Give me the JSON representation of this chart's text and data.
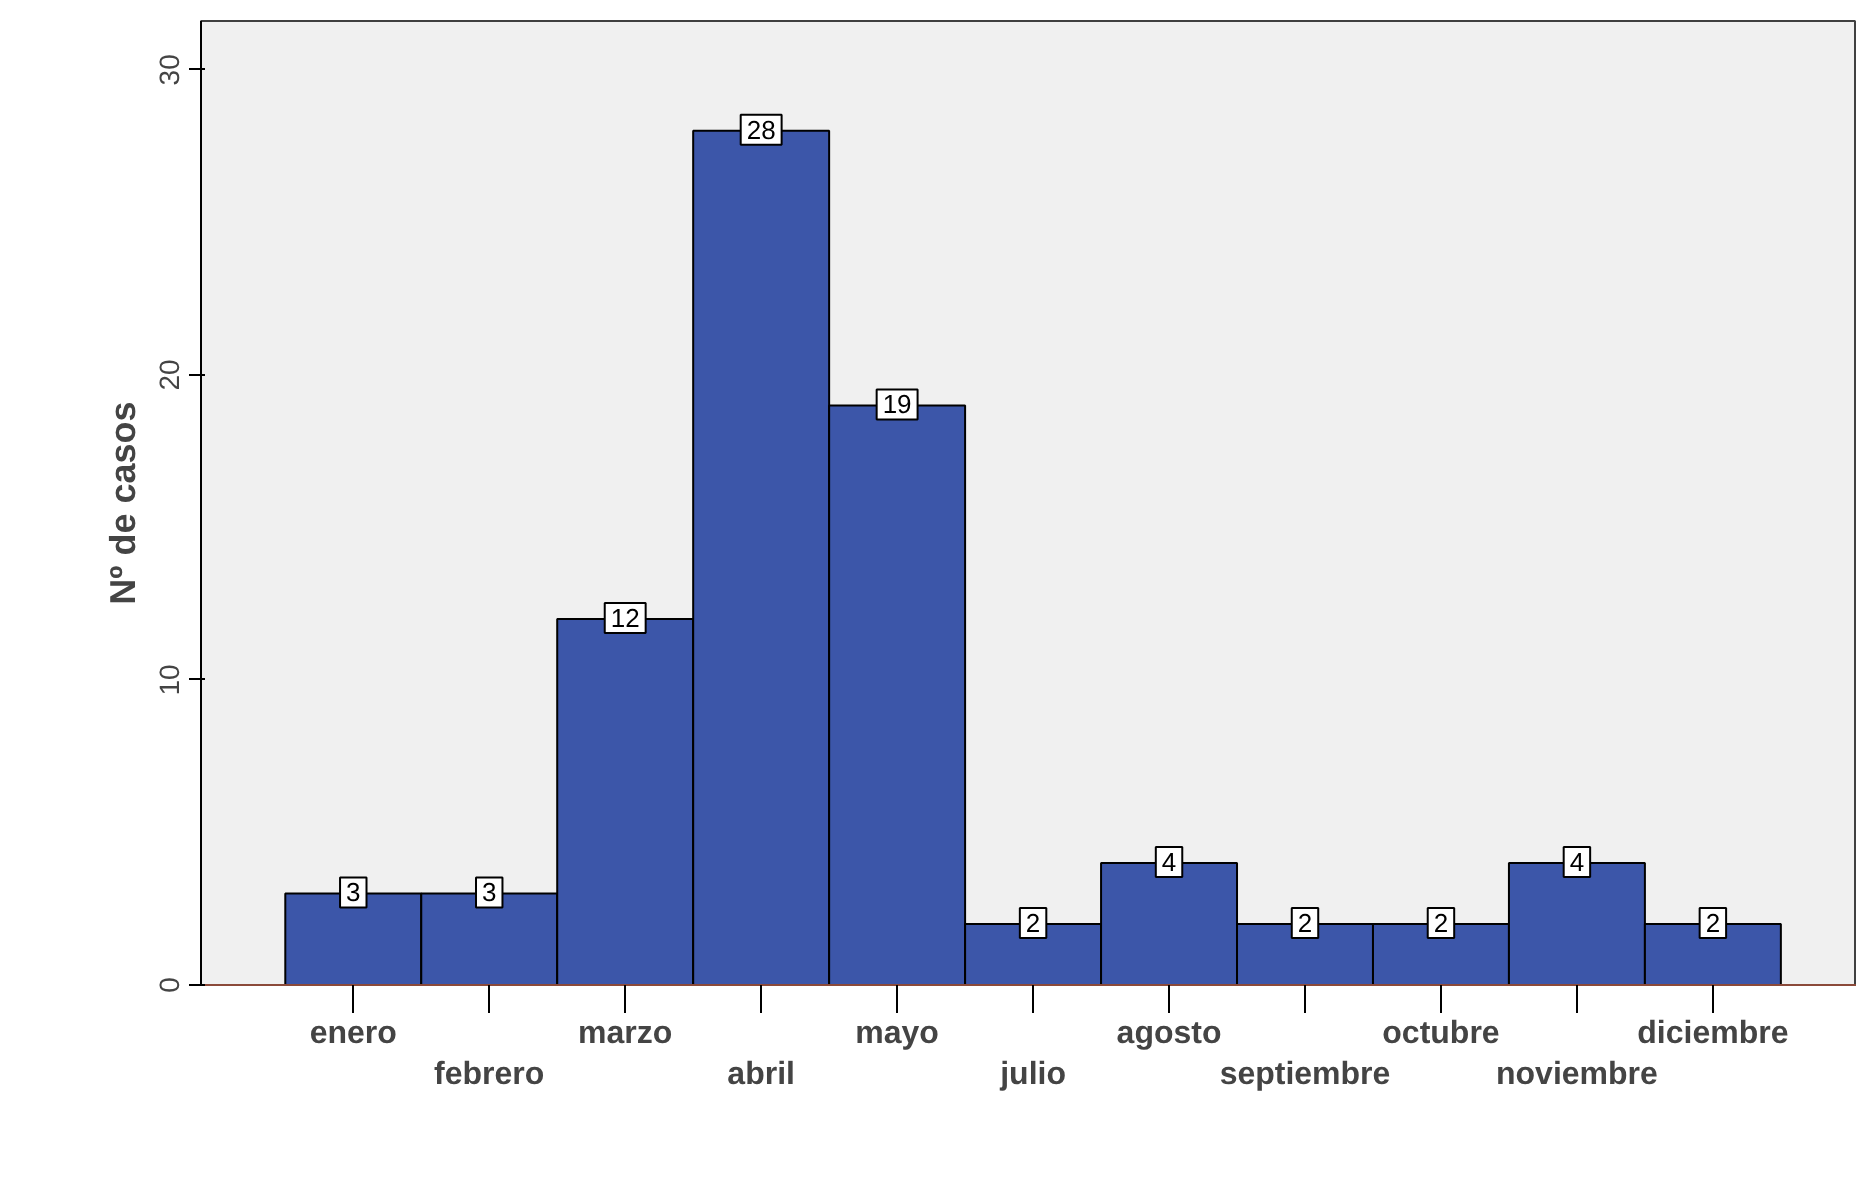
{
  "chart_data": {
    "type": "bar",
    "ylabel": "Nº de casos",
    "categories": [
      "enero",
      "febrero",
      "marzo",
      "abril",
      "mayo",
      "julio",
      "agosto",
      "septiembre",
      "octubre",
      "noviembre",
      "diciembre"
    ],
    "values": [
      3,
      3,
      12,
      28,
      19,
      2,
      4,
      2,
      2,
      4,
      2
    ],
    "color": "#3c56a9",
    "ylim": [
      0,
      31.6
    ],
    "yticks": [
      0,
      10,
      20,
      30
    ],
    "grid": false,
    "data_labels": true
  }
}
